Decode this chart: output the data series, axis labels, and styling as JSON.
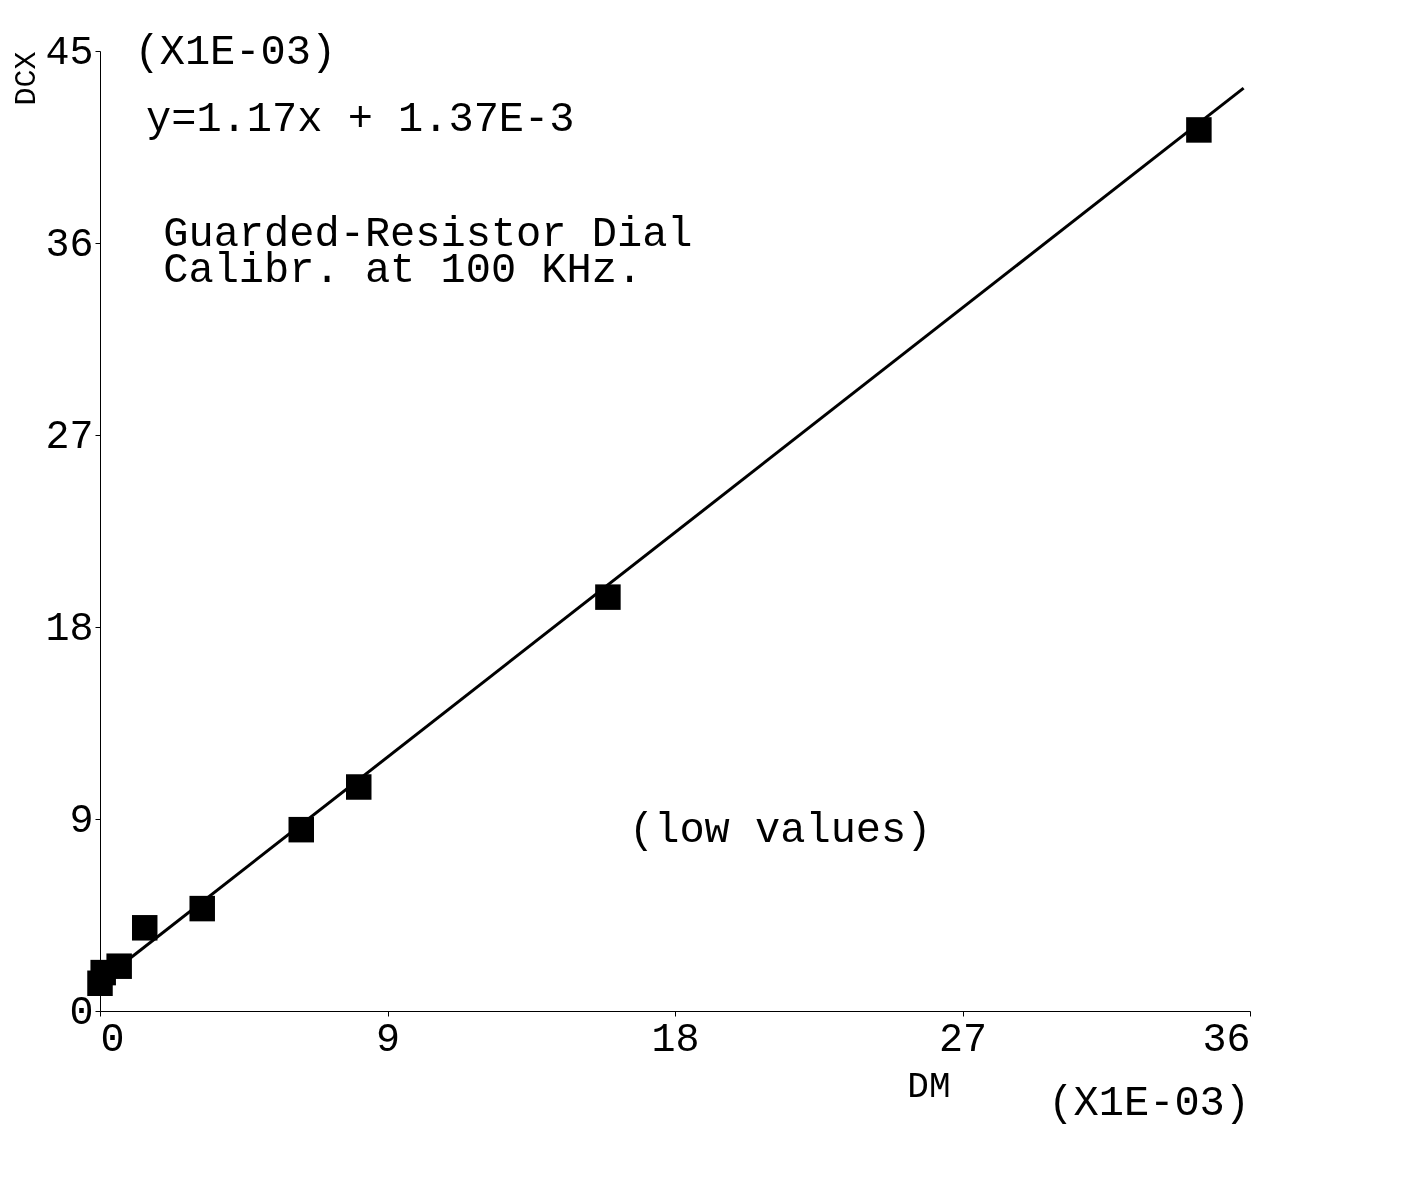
{
  "chart_data": {
    "type": "scatter",
    "xlabel": "DM",
    "ylabel": "DCX",
    "annotations": [
      "y=1.17x + 1.37E-3",
      "Guarded-Resistor Dial\nCalibr. at 100 KHz.",
      "(low values)",
      "(X1E-03)",
      "(X1E-03)"
    ],
    "series": [
      {
        "color": "#000000",
        "marker": "square",
        "x": [
          0.0,
          0.1,
          0.6,
          1.4,
          3.2,
          6.3,
          8.1,
          15.9,
          34.4
        ],
        "values": [
          1.3,
          1.8,
          2.1,
          3.9,
          4.8,
          8.5,
          10.5,
          19.4,
          41.3
        ]
      },
      {
        "type": "line",
        "color": "#000000",
        "marker": "none",
        "line_style": "solid",
        "x": [
          0.0,
          35.8
        ],
        "values": [
          1.37,
          43.26
        ]
      }
    ],
    "xlim": [
      0,
      36
    ],
    "ylim": [
      0,
      45
    ],
    "xticks": [
      0,
      9,
      18,
      27,
      36
    ],
    "yticks": [
      0,
      9,
      18,
      27,
      36,
      45
    ],
    "grid": false,
    "legend": false
  }
}
